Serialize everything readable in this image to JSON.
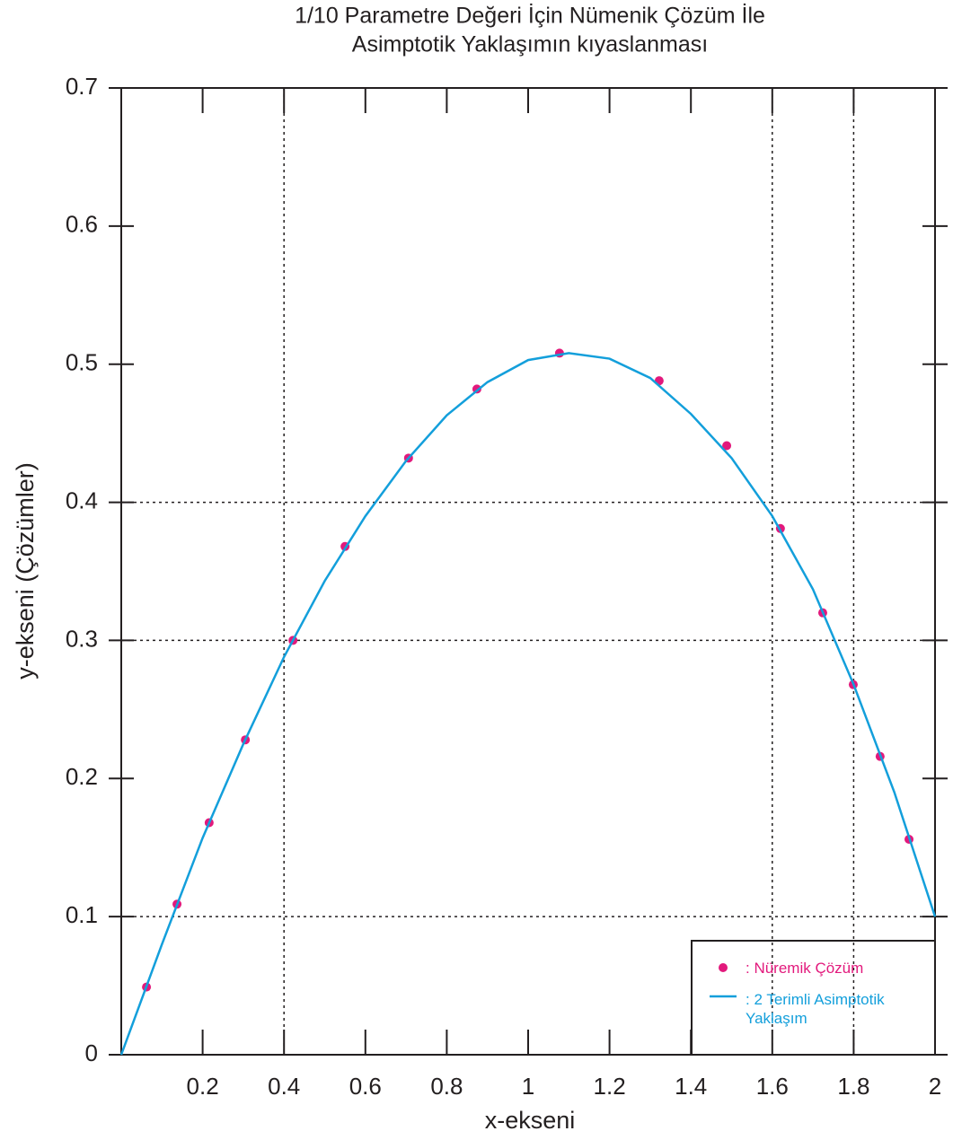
{
  "chart_data": {
    "type": "scatter-line",
    "title": [
      "1/10 Parametre Değeri İçin Nümenik Çözüm İle",
      "Asimptotik Yaklaşımın kıyaslanması"
    ],
    "x_label": "x-ekseni",
    "y_label": "y-ekseni (Çözümler)",
    "xlim": [
      0,
      2
    ],
    "ylim": [
      0,
      0.7
    ],
    "xticks": [
      0.2,
      0.4,
      0.6,
      0.8,
      1,
      1.2,
      1.4,
      1.6,
      1.8,
      2
    ],
    "yticks": [
      0,
      0.1,
      0.2,
      0.3,
      0.4,
      0.5,
      0.6,
      0.7
    ],
    "grid_x": [
      0.4,
      1.6,
      1.8
    ],
    "grid_y": [
      0.1,
      0.3,
      0.4
    ],
    "legend": "lower right",
    "series": [
      {
        "name": ": Nüremik Çözüm",
        "color": "#e2197c",
        "style": "points",
        "x": [
          0.062,
          0.137,
          0.216,
          0.305,
          0.422,
          0.55,
          0.706,
          0.874,
          1.077,
          1.322,
          1.488,
          1.62,
          1.724,
          1.799,
          1.865,
          1.936
        ],
        "values": [
          0.049,
          0.109,
          0.168,
          0.228,
          0.3,
          0.368,
          0.432,
          0.482,
          0.508,
          0.488,
          0.441,
          0.381,
          0.32,
          0.268,
          0.216,
          0.156
        ]
      },
      {
        "name": ": 2 Terimli Asimptotik Yaklaşım",
        "color": "#139fdb",
        "style": "line",
        "x": [
          0,
          0.1,
          0.2,
          0.3,
          0.4,
          0.5,
          0.6,
          0.7,
          0.8,
          0.9,
          1.0,
          1.1,
          1.2,
          1.3,
          1.4,
          1.5,
          1.6,
          1.7,
          1.8,
          1.9,
          2.0
        ],
        "values": [
          0,
          0.08,
          0.157,
          0.225,
          0.288,
          0.343,
          0.39,
          0.43,
          0.463,
          0.487,
          0.503,
          0.508,
          0.504,
          0.49,
          0.464,
          0.432,
          0.39,
          0.337,
          0.268,
          0.19,
          0.1
        ]
      }
    ]
  }
}
